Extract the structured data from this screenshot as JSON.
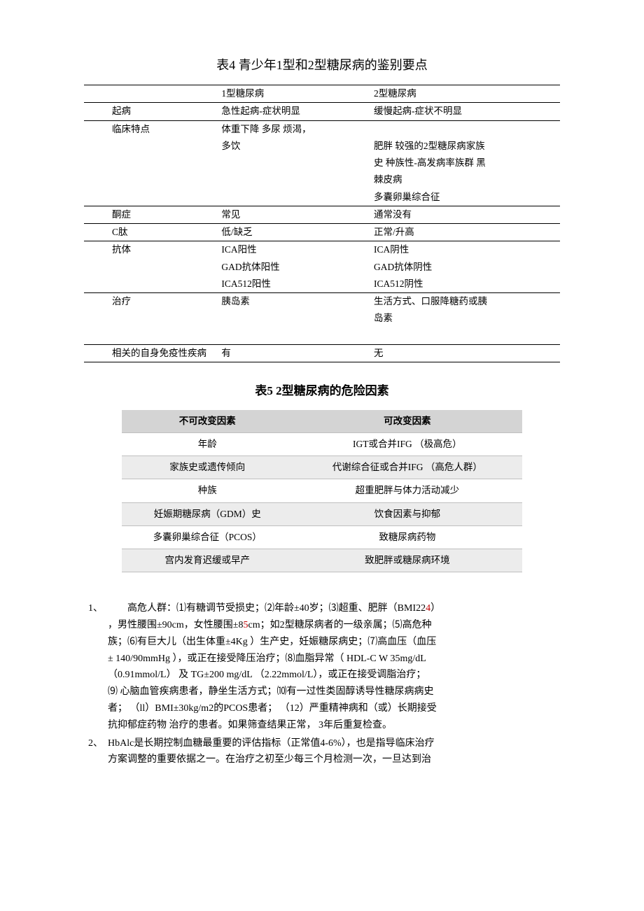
{
  "t4": {
    "title": "表4 青少年1型和2型糖尿病的鉴别要点",
    "h1": "1型糖尿病",
    "h2": "2型糖尿病",
    "r": {
      "onset": {
        "k": "起病",
        "a": "急性起病-症状明显",
        "b": "缓慢起病-症状不明显"
      },
      "clin": {
        "k": "临床特点",
        "a1": "体重下降 多尿 烦渴，",
        "a2": "多饮",
        "b1": "肥胖 较强的2型糖尿病家族",
        "b2": "史 种族性-高发病率族群 黑",
        "b3": "棘皮病",
        "b4": "多囊卵巢综合征"
      },
      "ket": {
        "k": "酮症",
        "a": "常见",
        "b": "通常没有"
      },
      "cpep": {
        "k": "C肽",
        "a": "低/缺乏",
        "b": "正常/升高"
      },
      "ab": {
        "k": "抗体",
        "a1": "ICA阳性",
        "b1": "ICA阴性",
        "a2": "GAD抗体阳性",
        "b2": "GAD抗体阴性",
        "a3": "ICA512阳性",
        "b3": "ICA512阴性"
      },
      "tx": {
        "k": "治疗",
        "a": "胰岛素",
        "b1": "生活方式、口服降糖药或胰",
        "b2": "岛素"
      },
      "auto": {
        "k": "相关的自身免疫性疾病",
        "a": "有",
        "b": "无"
      }
    }
  },
  "t5": {
    "title": "表5  2型糖尿病的危险因素",
    "h1": "不可改变因素",
    "h2": "可改变因素",
    "rows": [
      {
        "a": "年龄",
        "b": "IGT或合并IFG （极高危）"
      },
      {
        "a": "家族史或遗传倾向",
        "b": "代谢综合征或合并IFG （高危人群）"
      },
      {
        "a": "种族",
        "b": "超重肥胖与体力活动减少"
      },
      {
        "a": "妊娠期糖尿病（GDM）史",
        "b": "饮食因素与抑郁"
      },
      {
        "a": "多囊卵巢综合征（PCOS）",
        "b": "致糖尿病药物"
      },
      {
        "a": "宫内发育迟缓或早产",
        "b": "致肥胖或糖尿病环境"
      }
    ]
  },
  "notes": {
    "n1": {
      "num": "1、",
      "l1a": "　　高危人群：⑴有糖调节受损史；⑵年龄±40岁；⑶超重、肥胖（BMI22",
      "l1b": "4",
      "l1c": "）",
      "l2a": "，男性腰围±90cm，女性腰围±8",
      "l2b": "5",
      "l2c": "cm；如2型糖尿病者的一级亲属；⑸高危种",
      "l3": "族；⑹有巨大儿（出生体重±4Kg ）生产史，妊娠糖尿病史；⑺高血压（血压",
      "l4": "± 140/90mmHg ），或正在接受降压治疗；⑻血脂异常（ HDL-C W 35mg/dL",
      "l5": "（0.91mmol/L）  及 TG±200 mg/dL （2.22mmol/L），或正在接受调脂治疗；",
      "l6": "⑼ 心脑血管疾病患者，静坐生活方式；⑽有一过性类固醇诱导性糖尿病病史",
      "l7": "者； （ll）BMI±30kg/m2的PCOS患者； （12）严重精神病和（或）长期接受",
      "l8": "抗抑郁症药物 治疗的患者。如果筛查结果正常， 3年后重复检查。"
    },
    "n2": {
      "num": "2、",
      "l1": "HbAlc是长期控制血糖最重要的评估指标（正常值4-6%），也是指导临床治疗",
      "l2": "方案调整的重要依据之一。在治疗之初至少每三个月检测一次，一旦达到治"
    }
  }
}
